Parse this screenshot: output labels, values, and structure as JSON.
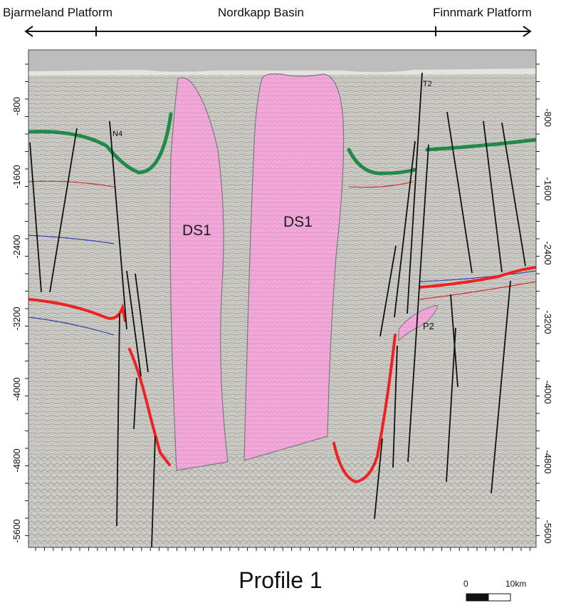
{
  "regions": {
    "left": "Bjarmeland Platform",
    "middle": "Nordkapp Basin",
    "right": "Finnmark Platform"
  },
  "depth_axis": {
    "left_ticks": [
      "-800",
      "-1600",
      "-2400",
      "-3200",
      "-4000",
      "-4800",
      "-5600"
    ],
    "right_ticks": [
      "-800",
      "-1600",
      "-2400",
      "-3200",
      "-4000",
      "-4800",
      "-5600"
    ]
  },
  "bodies": {
    "salt_diapir_left": "DS1",
    "salt_diapir_right": "DS1",
    "pillow": "P2"
  },
  "horizon_labels": {
    "n4": "N4",
    "t2": "T2"
  },
  "title": "Profile 1",
  "scale_bar": {
    "start": "0",
    "end": "10km"
  },
  "colors": {
    "salt": "#f0a6d8",
    "green_horizon": "#1f8a4a",
    "red_horizon": "#ee2222",
    "faults": "#111111",
    "seismic_bg": "#cfcdc8",
    "water": "#bdbdbd"
  }
}
